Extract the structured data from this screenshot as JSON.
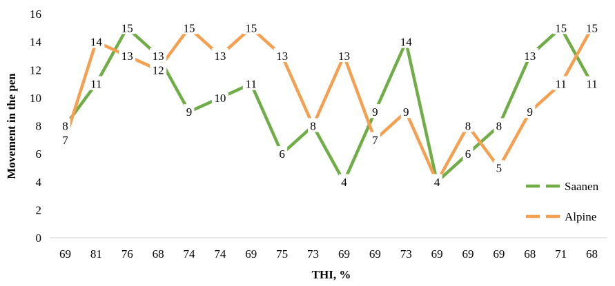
{
  "chart_data": {
    "type": "line",
    "xlabel": "THI, %",
    "ylabel": "Movement in the pen",
    "categories": [
      "69",
      "81",
      "76",
      "68",
      "74",
      "74",
      "69",
      "75",
      "73",
      "69",
      "69",
      "73",
      "69",
      "69",
      "69",
      "68",
      "71",
      "68"
    ],
    "ylim": [
      0,
      16
    ],
    "yticks": [
      "0",
      "2",
      "4",
      "6",
      "8",
      "10",
      "12",
      "14",
      "16"
    ],
    "grid": false,
    "legend_position": "right",
    "series": [
      {
        "name": "Saanen",
        "color": "#70ad47",
        "values": [
          8,
          11,
          15,
          13,
          9,
          10,
          11,
          6,
          8,
          4,
          9,
          14,
          4,
          6,
          8,
          13,
          15,
          11
        ]
      },
      {
        "name": "Alpine",
        "color": "#f4a050",
        "values": [
          7,
          14,
          13,
          12,
          15,
          13,
          15,
          13,
          8,
          13,
          7,
          9,
          4,
          8,
          5,
          9,
          11,
          15
        ]
      }
    ]
  }
}
